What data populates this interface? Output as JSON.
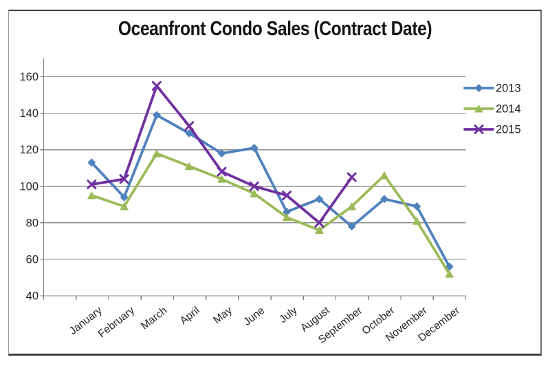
{
  "chart_data": {
    "type": "line",
    "title": "Oceanfront Condo Sales (Contract Date)",
    "categories": [
      "January",
      "February",
      "March",
      "April",
      "May",
      "June",
      "July",
      "August",
      "September",
      "October",
      "November",
      "December"
    ],
    "series": [
      {
        "name": "2013",
        "color": "#4F81BD",
        "marker": "diamond",
        "values": [
          113,
          94,
          139,
          129,
          118,
          121,
          86,
          93,
          78,
          93,
          89,
          56
        ]
      },
      {
        "name": "2014",
        "color": "#9BBB59",
        "marker": "triangle",
        "values": [
          95,
          89,
          118,
          111,
          104,
          96,
          83,
          76,
          89,
          106,
          81,
          52
        ]
      },
      {
        "name": "2015",
        "color": "#7030A0",
        "marker": "x",
        "values": [
          101,
          104,
          155,
          133,
          108,
          100,
          95,
          80,
          105,
          null,
          null,
          null
        ]
      }
    ],
    "ylim": [
      40,
      170
    ],
    "y_ticks": [
      40,
      60,
      80,
      100,
      120,
      140,
      160
    ],
    "grid": true,
    "legend_position": "right",
    "axis_color": "#808080",
    "grid_color": "#8c8c8c",
    "label_color": "#262626",
    "frame_border_color": "#3f3f3f"
  }
}
